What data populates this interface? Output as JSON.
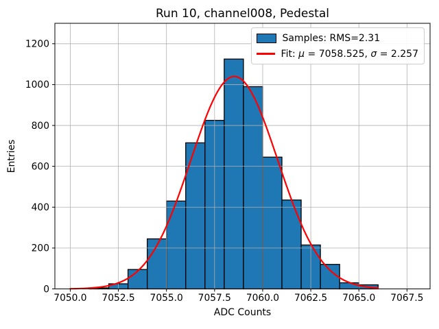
{
  "window": {
    "background": "#ffffff"
  },
  "chart_data": {
    "type": "bar",
    "subtype": "histogram-with-gaussian-fit",
    "title": "Run 10, channel008, Pedestal",
    "xlabel": "ADC Counts",
    "ylabel": "Entries",
    "bin_edges": [
      7051,
      7052,
      7053,
      7054,
      7055,
      7056,
      7057,
      7058,
      7059,
      7060,
      7061,
      7062,
      7063,
      7064,
      7065,
      7066
    ],
    "counts": [
      5,
      25,
      95,
      245,
      430,
      715,
      825,
      1125,
      990,
      645,
      435,
      215,
      120,
      30,
      20
    ],
    "xlim": [
      7049.2,
      7068.7
    ],
    "ylim": [
      0,
      1300
    ],
    "xtick_values": [
      7050.0,
      7052.5,
      7055.0,
      7057.5,
      7060.0,
      7062.5,
      7065.0,
      7067.5
    ],
    "xtick_labels": [
      "7050.0",
      "7052.5",
      "7055.0",
      "7057.5",
      "7060.0",
      "7062.5",
      "7065.0",
      "7067.5"
    ],
    "ytick_values": [
      0,
      200,
      400,
      600,
      800,
      1000,
      1200
    ],
    "ytick_labels": [
      "0",
      "200",
      "400",
      "600",
      "800",
      "1000",
      "1200"
    ],
    "grid": true,
    "grid_over_bars": true,
    "fit_curve": {
      "type": "gaussian",
      "mu": 7058.525,
      "sigma": 2.257,
      "amplitude": 1040,
      "x_start": 7050,
      "x_end": 7066
    },
    "legend": {
      "position": "upper right",
      "entries": [
        {
          "swatch": "filled-box",
          "label": "Samples: RMS=2.31"
        },
        {
          "swatch": "red-line",
          "label": "Fit: μ = 7058.525, σ = 2.257"
        }
      ]
    },
    "colors": {
      "bar_fill": "#1f77b4",
      "bar_edge": "#000000",
      "fit_line": "#ff0000",
      "grid_line": "#b0b0b0",
      "axis": "#000000",
      "text": "#000000"
    }
  },
  "legend_display": {
    "samples_label": "Samples: RMS=2.31",
    "fit_prefix": "Fit: ",
    "fit_mu_symbol": "μ",
    "fit_mu_value": " = 7058.525, ",
    "fit_sigma_symbol": "σ",
    "fit_sigma_value": " = 2.257"
  }
}
